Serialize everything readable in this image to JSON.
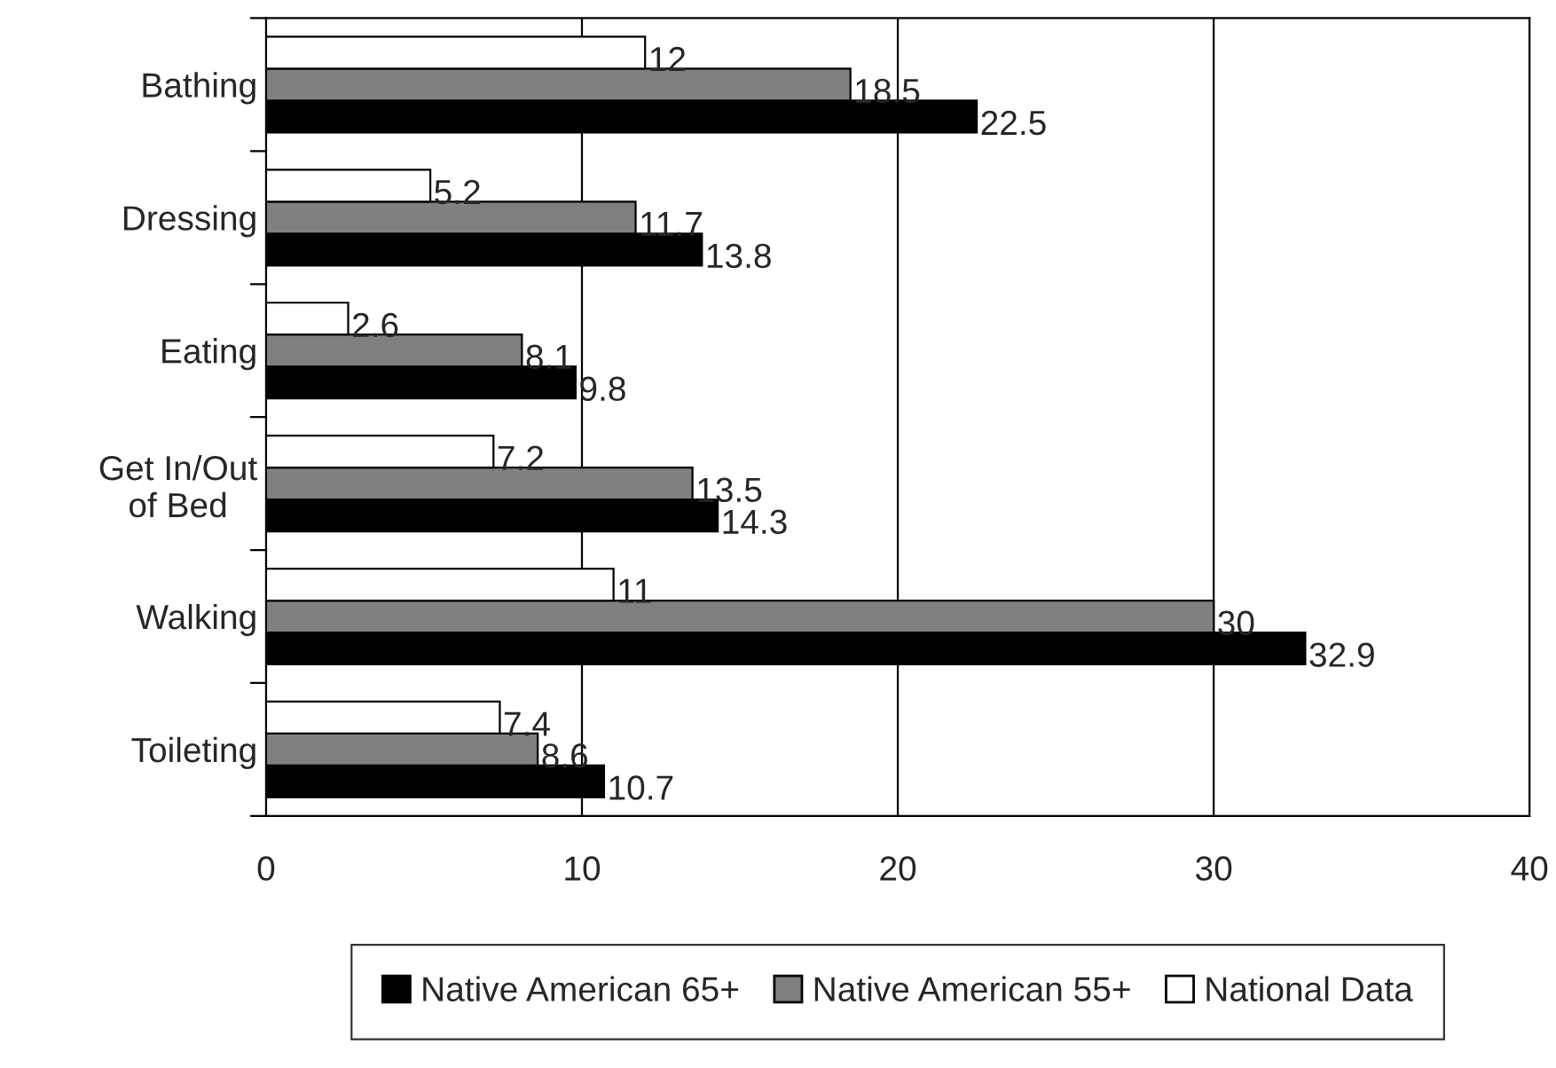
{
  "chart_data": {
    "type": "bar",
    "orientation": "horizontal",
    "categories": [
      "Bathing",
      "Dressing",
      "Eating",
      "Get In/Out\nof Bed",
      "Walking",
      "Toileting"
    ],
    "series": [
      {
        "name": "Native American 65+",
        "color": "#000000",
        "values": [
          22.5,
          13.8,
          9.8,
          14.3,
          32.9,
          10.7
        ]
      },
      {
        "name": "Native American 55+",
        "color": "#808080",
        "values": [
          18.5,
          11.7,
          8.1,
          13.5,
          30,
          8.6
        ]
      },
      {
        "name": "National Data",
        "color": "#ffffff",
        "values": [
          12,
          5.2,
          2.6,
          7.2,
          11,
          7.4
        ]
      }
    ],
    "xlim": [
      0,
      40
    ],
    "xticks": [
      0,
      10,
      20,
      30,
      40
    ],
    "grid": "x",
    "legend": "bottom",
    "data_labels": true
  }
}
